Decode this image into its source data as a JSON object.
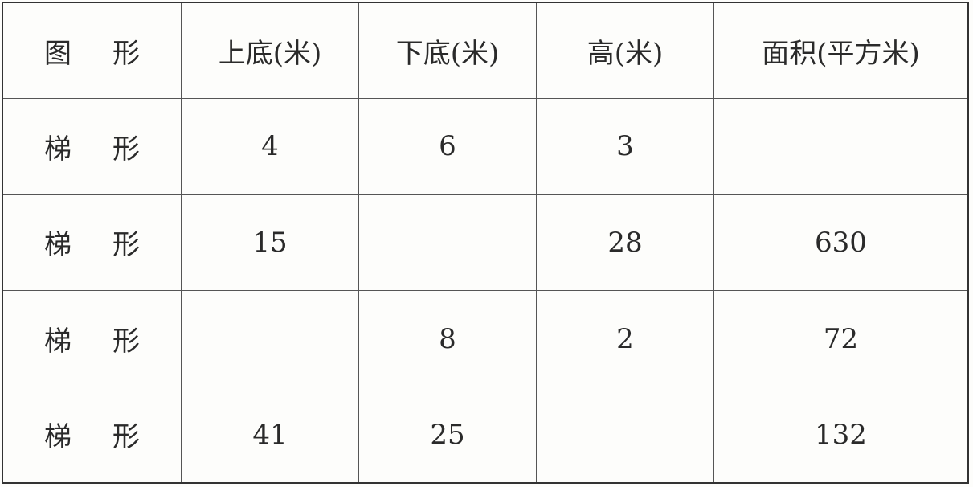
{
  "table": {
    "headers": [
      "图形",
      "上底(米)",
      "下底(米)",
      "高(米)",
      "面积(平方米)"
    ],
    "rows": [
      [
        "梯形",
        "4",
        "6",
        "3",
        ""
      ],
      [
        "梯形",
        "15",
        "",
        "28",
        "630"
      ],
      [
        "梯形",
        "",
        "8",
        "2",
        "72"
      ],
      [
        "梯形",
        "41",
        "25",
        "",
        "132"
      ]
    ]
  }
}
